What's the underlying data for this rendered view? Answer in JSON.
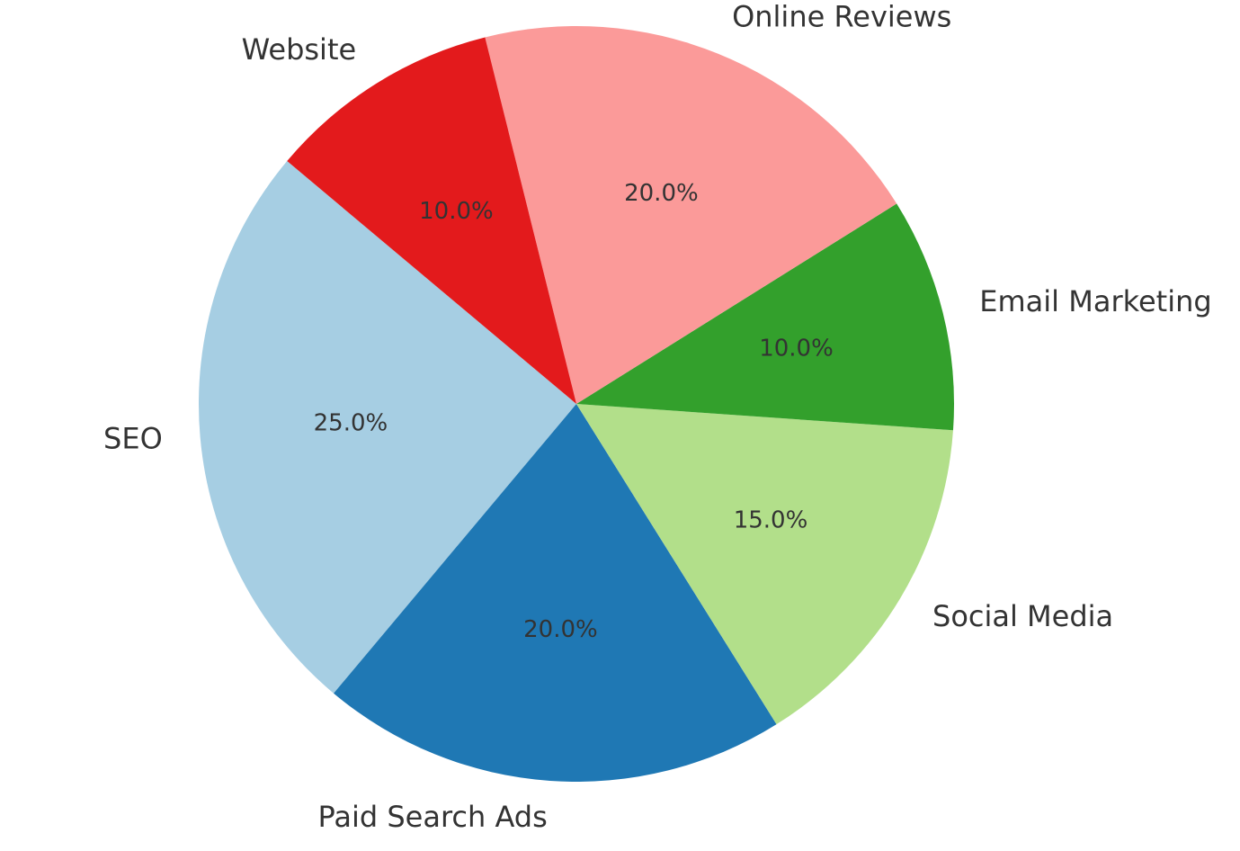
{
  "chart_data": {
    "type": "pie",
    "categories": [
      "SEO",
      "Paid Search Ads",
      "Social Media",
      "Email Marketing",
      "Online Reviews",
      "Website"
    ],
    "values": [
      25,
      20,
      15,
      10,
      20,
      10
    ],
    "value_labels": [
      "25.0%",
      "20.0%",
      "15.0%",
      "10.0%",
      "20.0%",
      "10.0%"
    ],
    "colors": [
      "#a6cee3",
      "#1f78b4",
      "#b2df8a",
      "#33a02c",
      "#fb9a99",
      "#e31a1c"
    ]
  }
}
